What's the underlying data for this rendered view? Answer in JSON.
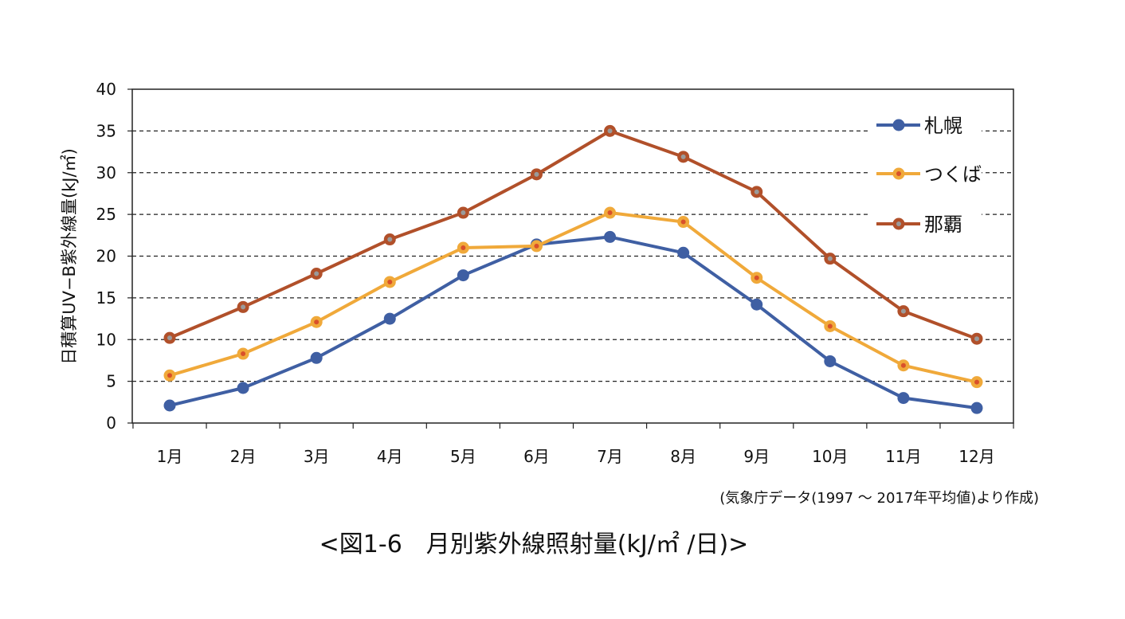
{
  "chart_data": {
    "type": "line",
    "title": "",
    "xlabel": "",
    "ylabel": "日積算UV−B紫外線量(kJ/㎡)",
    "categories": [
      "1月",
      "2月",
      "3月",
      "4月",
      "5月",
      "6月",
      "7月",
      "8月",
      "9月",
      "10月",
      "11月",
      "12月"
    ],
    "ylim": [
      0,
      40
    ],
    "yticks": [
      0,
      5,
      10,
      15,
      20,
      25,
      30,
      35,
      40
    ],
    "grid": "horizontal dashed",
    "legend_position": "top-right",
    "series": [
      {
        "name": "札幌",
        "color": "#3F5FA3",
        "values": [
          2.1,
          4.2,
          7.8,
          12.5,
          17.7,
          21.4,
          22.3,
          20.4,
          14.2,
          7.4,
          3.0,
          1.8
        ]
      },
      {
        "name": "つくば",
        "color": "#F0A93A",
        "values": [
          5.7,
          8.3,
          12.1,
          16.9,
          21.0,
          21.2,
          25.2,
          24.1,
          17.4,
          11.6,
          6.9,
          4.9
        ]
      },
      {
        "name": "那覇",
        "color": "#B1502A",
        "values": [
          10.2,
          13.9,
          17.9,
          22.0,
          25.2,
          29.8,
          35.0,
          31.9,
          27.7,
          19.7,
          13.4,
          10.1
        ]
      }
    ]
  },
  "source_note": "(気象庁データ(1997 〜 2017年平均値)より作成)",
  "caption": "<図1-6　月別紫外線照射量(kJ/㎡ /日)>"
}
